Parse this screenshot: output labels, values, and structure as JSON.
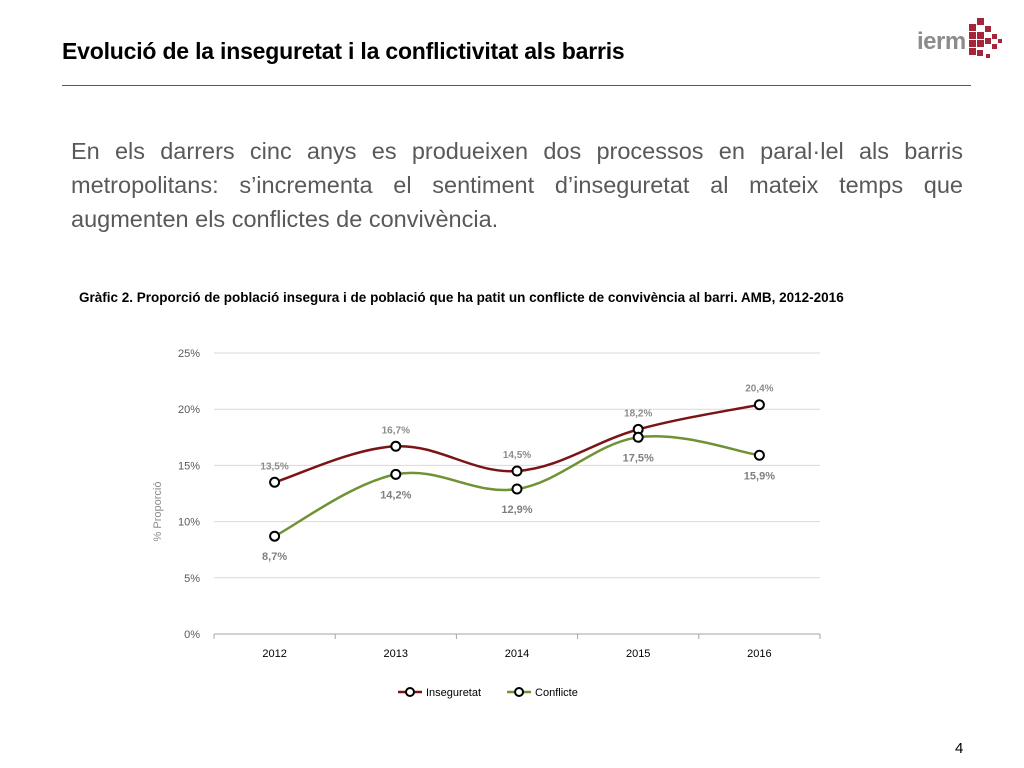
{
  "header": {
    "title": "Evolució de la inseguretat i la conflictivitat als barris",
    "logo_text": "ierm"
  },
  "intro_text": "En els darrers cinc anys es produeixen dos processos en paral·lel als barris metropolitans: s’incrementa el sentiment d’inseguretat al mateix temps que augmenten els conflictes de convivència.",
  "chart_caption": "Gràfic 2. Proporció de població insegura i de població que ha patit un conflicte de convivència al barri. AMB, 2012-2016",
  "page_number": "4",
  "colors": {
    "accent": "#b5342a",
    "inseguretat": "#7b1416",
    "conflicte": "#6f9234"
  },
  "chart_data": {
    "type": "line",
    "x": [
      "2012",
      "2013",
      "2014",
      "2015",
      "2016"
    ],
    "ylabel": "% Proporció",
    "ylim": [
      0,
      25
    ],
    "yticks": [
      "0%",
      "5%",
      "10%",
      "15%",
      "20%",
      "25%"
    ],
    "ytick_values": [
      0,
      5,
      10,
      15,
      20,
      25
    ],
    "grid": true,
    "legend_position": "bottom",
    "smooth": true,
    "series": [
      {
        "name": "Inseguretat",
        "values": [
          13.5,
          16.7,
          14.5,
          18.2,
          20.4
        ],
        "labels": [
          "13,5%",
          "16,7%",
          "14,5%",
          "18,2%",
          "20,4%"
        ],
        "label_position": "above",
        "color": "#7b1416"
      },
      {
        "name": "Conflicte",
        "values": [
          8.7,
          14.2,
          12.9,
          17.5,
          15.9
        ],
        "labels": [
          "8,7%",
          "14,2%",
          "12,9%",
          "17,5%",
          "15,9%"
        ],
        "label_position": "below",
        "color": "#6f9234"
      }
    ]
  }
}
